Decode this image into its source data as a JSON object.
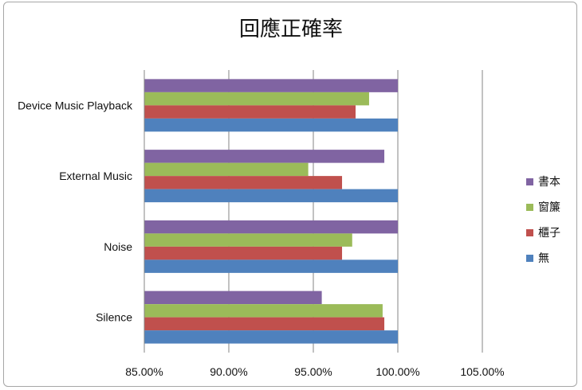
{
  "chart_data": {
    "type": "bar",
    "orientation": "horizontal",
    "title": "回應正確率",
    "categories": [
      "Device Music Playback",
      "External Music",
      "Noise",
      "Silence"
    ],
    "series": [
      {
        "name": "書本",
        "color": "#8064a2",
        "values": [
          100.0,
          99.2,
          100.0,
          95.5
        ]
      },
      {
        "name": "窗簾",
        "color": "#9bbb59",
        "values": [
          98.3,
          94.7,
          97.3,
          99.1
        ]
      },
      {
        "name": "櫃子",
        "color": "#c0504d",
        "values": [
          97.5,
          96.7,
          96.7,
          99.2
        ]
      },
      {
        "name": "無",
        "color": "#4f81bd",
        "values": [
          100.0,
          100.0,
          100.0,
          100.0
        ]
      }
    ],
    "xlim": [
      85,
      105
    ],
    "xticks": [
      "85.00%",
      "90.00%",
      "95.00%",
      "100.00%",
      "105.00%"
    ],
    "grid": true,
    "legend": "right"
  }
}
